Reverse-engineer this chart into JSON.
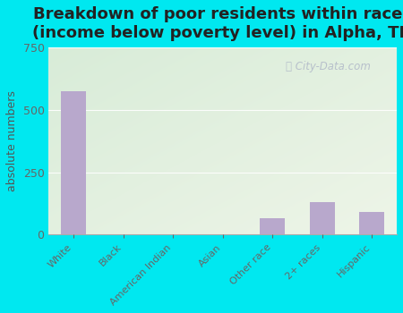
{
  "title": "Breakdown of poor residents within races\n(income below poverty level) in Alpha, TN",
  "categories": [
    "White",
    "Black",
    "American Indian",
    "Asian",
    "Other race",
    "2+ races",
    "Hispanic"
  ],
  "values": [
    575,
    0,
    0,
    0,
    65,
    130,
    90
  ],
  "bar_color": "#b8a8cc",
  "ylabel": "absolute numbers",
  "ylim": [
    0,
    750
  ],
  "yticks": [
    0,
    250,
    500,
    750
  ],
  "bg_outer": "#00e8f0",
  "bg_plot_topleft": "#d8ecd8",
  "bg_plot_bottomright": "#eef5e8",
  "title_fontsize": 13,
  "watermark": "City-Data.com"
}
